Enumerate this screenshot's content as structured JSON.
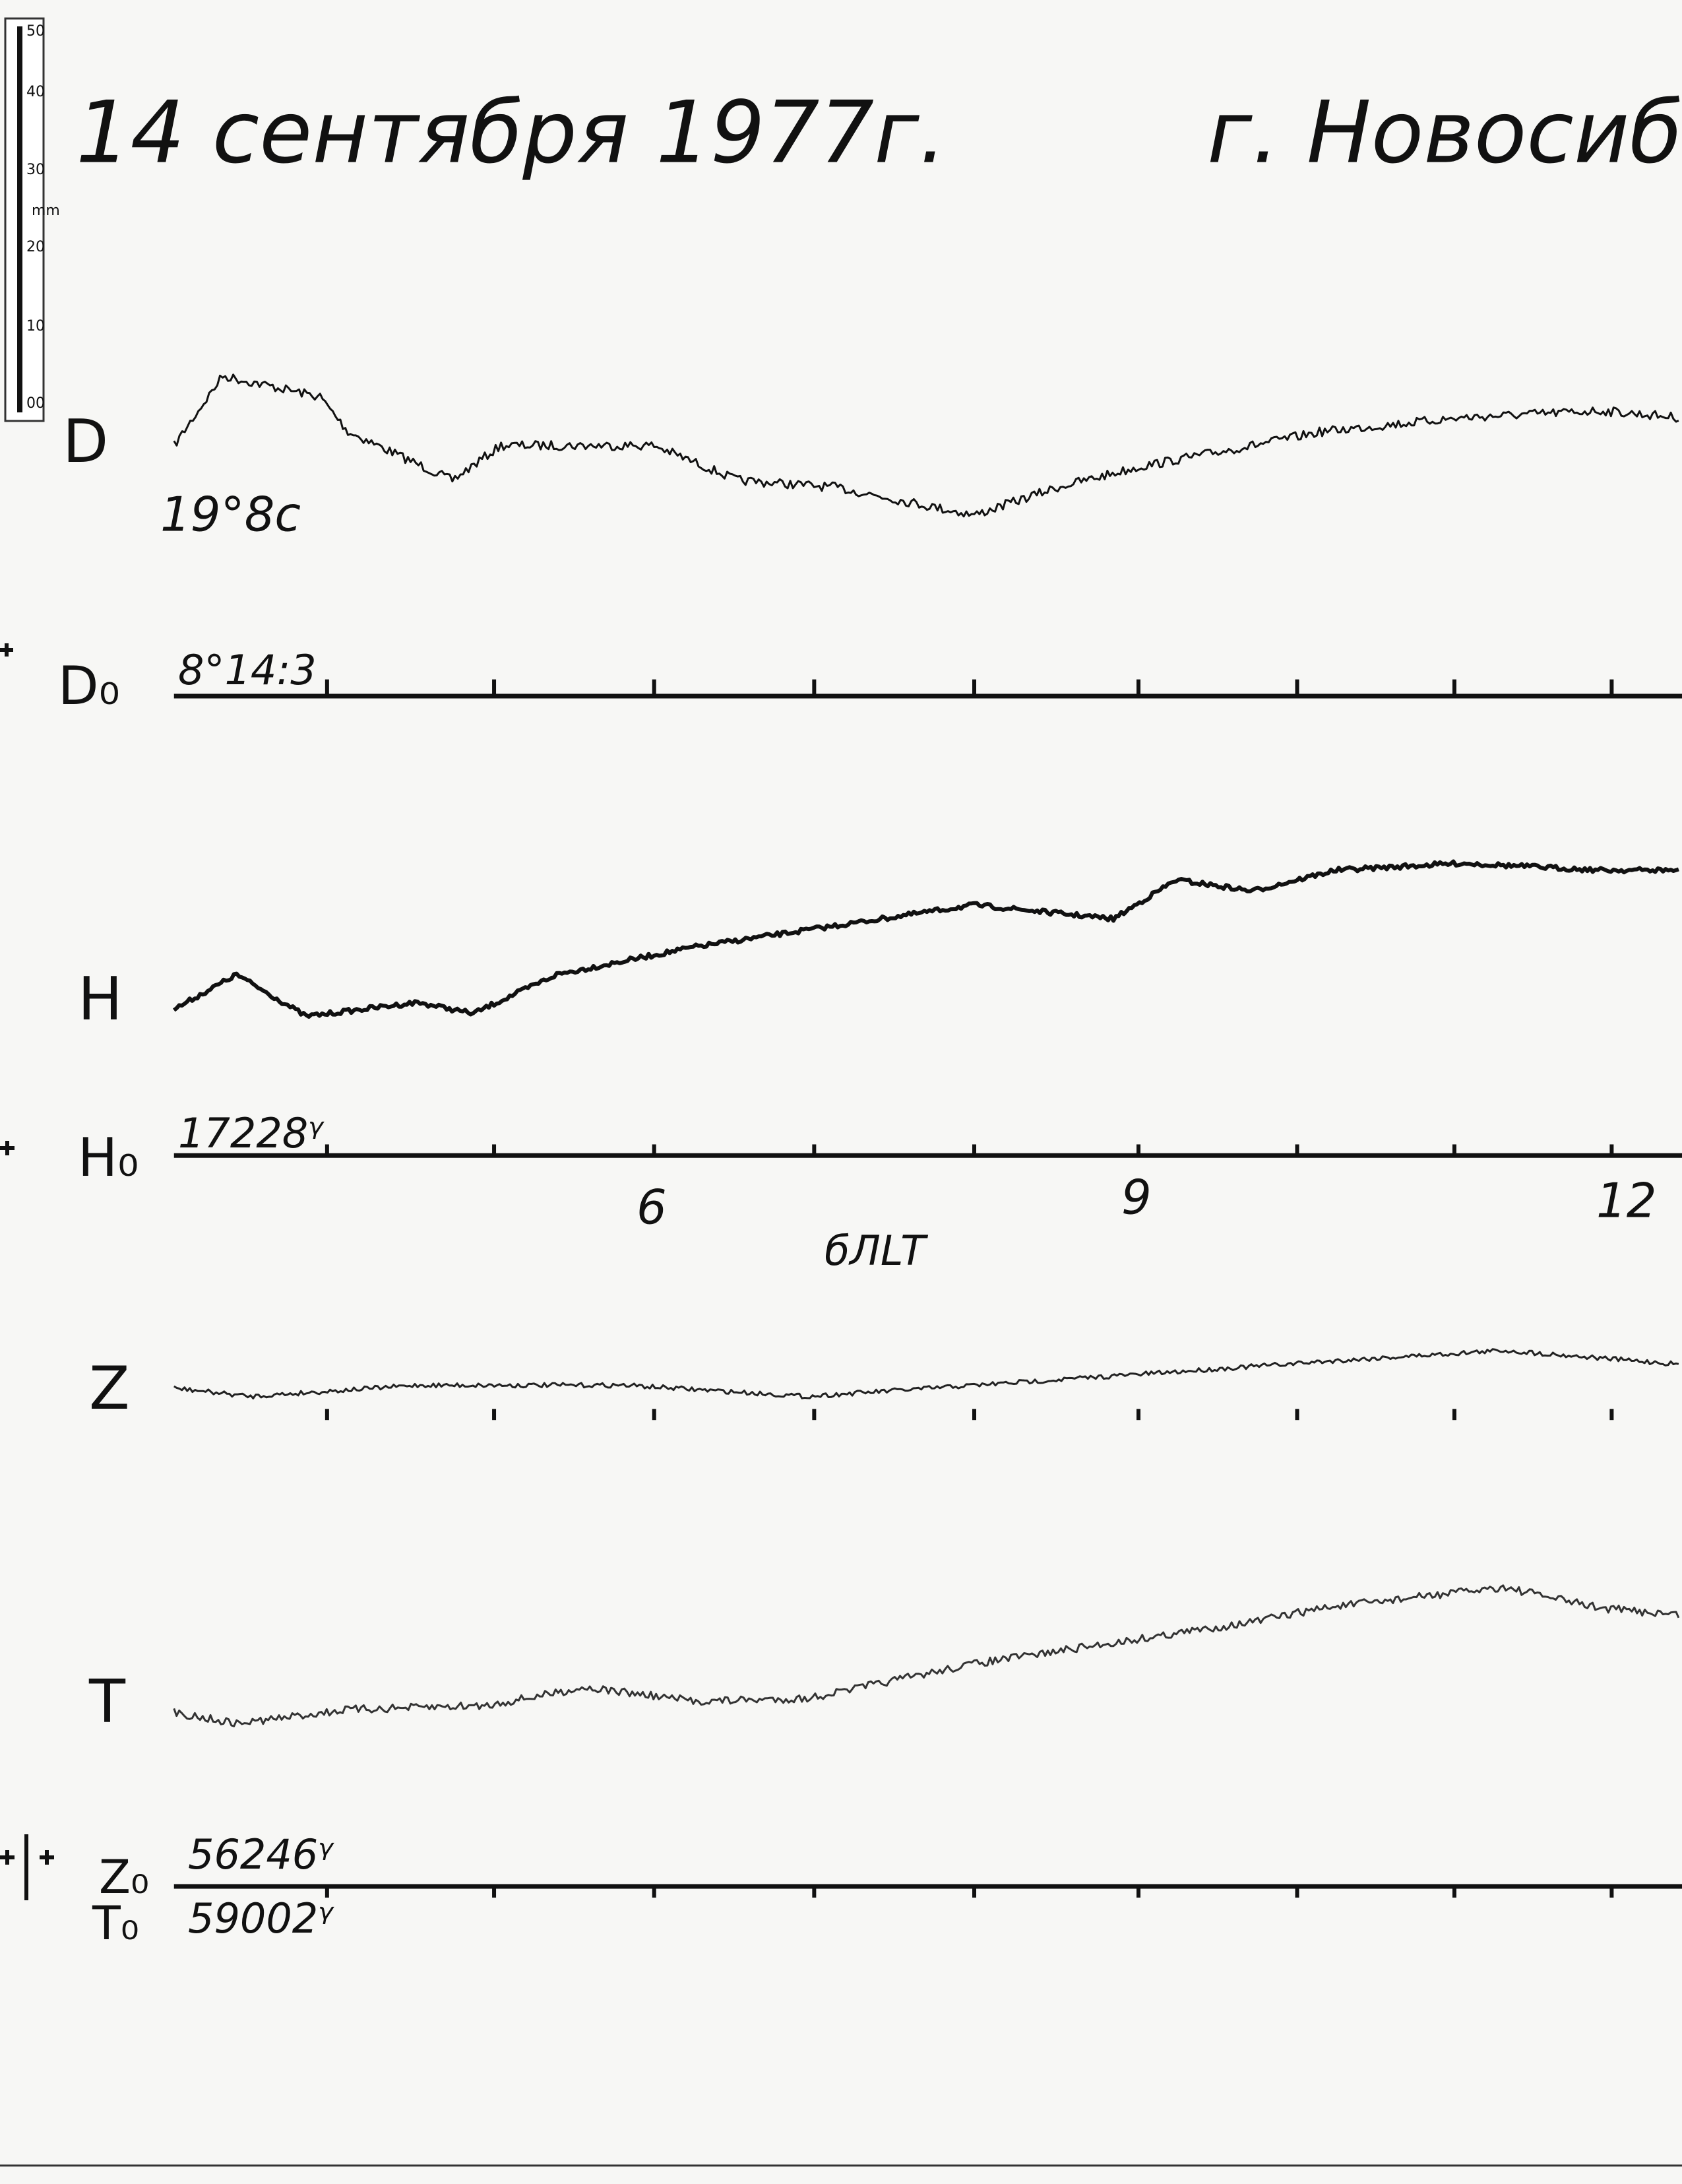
{
  "header": {
    "date": "14 сентября 1977г.",
    "place": "г. Новосибирс"
  },
  "ruler": {
    "ticks": [
      "50",
      "40",
      "30",
      "20",
      "10",
      "00"
    ],
    "unit": "mm"
  },
  "traces": {
    "d": {
      "label": "D",
      "note": "19°8с",
      "base_label": "D₀",
      "base_value": "8°14:3"
    },
    "h": {
      "label": "H",
      "base_label": "H₀",
      "base_value": "17228ᵞ"
    },
    "z": {
      "label": "Z",
      "base_label": "Z₀",
      "base_value": "56246ᵞ"
    },
    "t": {
      "label": "T",
      "base_label": "T₀",
      "base_value": "59002ᵞ"
    }
  },
  "time_axis": {
    "ticks": [
      "6",
      "9",
      "12"
    ],
    "label": "бЛLT"
  }
}
